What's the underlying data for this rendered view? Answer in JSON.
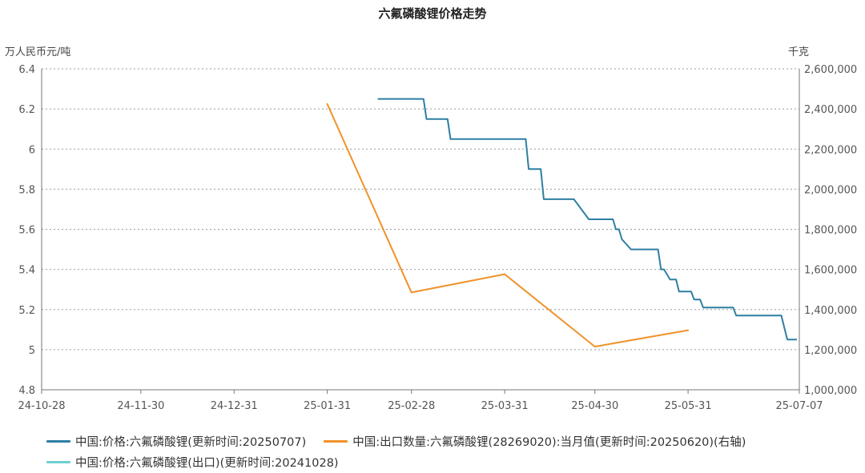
{
  "chart_data": {
    "type": "line",
    "title": "六氟磷酸锂价格走势",
    "ylabel_left": "万人民币元/吨",
    "ylabel_right": "千克",
    "x_ticks": [
      "24-10-28",
      "24-11-30",
      "24-12-31",
      "25-01-31",
      "25-02-28",
      "25-03-31",
      "25-04-30",
      "25-05-31",
      "25-07-07"
    ],
    "x_range": [
      "2024-10-28",
      "2025-07-07"
    ],
    "y_left": {
      "min": 4.8,
      "max": 6.4,
      "ticks": [
        "4.8",
        "5",
        "5.2",
        "5.4",
        "5.6",
        "5.8",
        "6",
        "6.2",
        "6.4"
      ]
    },
    "y_right": {
      "min": 1000000,
      "max": 2600000,
      "ticks": [
        "1,000,000",
        "1,200,000",
        "1,400,000",
        "1,600,000",
        "1,800,000",
        "2,000,000",
        "2,200,000",
        "2,400,000",
        "2,600,000"
      ]
    },
    "grid": "horizontal-dotted",
    "legend_position": "bottom",
    "series": [
      {
        "name": "中国:价格:六氟磷酸锂(更新时间:20250707)",
        "axis": "left",
        "color": "#2e7fa3",
        "step": true,
        "points": [
          [
            "2025-02-17",
            6.25
          ],
          [
            "2025-03-04",
            6.25
          ],
          [
            "2025-03-05",
            6.15
          ],
          [
            "2025-03-12",
            6.15
          ],
          [
            "2025-03-13",
            6.05
          ],
          [
            "2025-04-07",
            6.05
          ],
          [
            "2025-04-08",
            5.9
          ],
          [
            "2025-04-12",
            5.9
          ],
          [
            "2025-04-13",
            5.75
          ],
          [
            "2025-04-23",
            5.75
          ],
          [
            "2025-04-28",
            5.65
          ],
          [
            "2025-05-06",
            5.65
          ],
          [
            "2025-05-07",
            5.6
          ],
          [
            "2025-05-08",
            5.6
          ],
          [
            "2025-05-09",
            5.55
          ],
          [
            "2025-05-12",
            5.5
          ],
          [
            "2025-05-21",
            5.5
          ],
          [
            "2025-05-22",
            5.4
          ],
          [
            "2025-05-23",
            5.4
          ],
          [
            "2025-05-25",
            5.35
          ],
          [
            "2025-05-27",
            5.35
          ],
          [
            "2025-05-28",
            5.29
          ],
          [
            "2025-06-01",
            5.29
          ],
          [
            "2025-06-02",
            5.25
          ],
          [
            "2025-06-04",
            5.25
          ],
          [
            "2025-06-05",
            5.21
          ],
          [
            "2025-06-15",
            5.21
          ],
          [
            "2025-06-16",
            5.17
          ],
          [
            "2025-07-01",
            5.17
          ],
          [
            "2025-07-03",
            5.05
          ],
          [
            "2025-07-06",
            5.05
          ]
        ]
      },
      {
        "name": "中国:出口数量:六氟磷酸锂(28269020):当月值(更新时间:20250620)(右轴)",
        "axis": "right",
        "color": "#f0922b",
        "step": false,
        "points": [
          [
            "2025-01-31",
            2425000
          ],
          [
            "2025-02-28",
            1485000
          ],
          [
            "2025-03-31",
            1576000
          ],
          [
            "2025-04-30",
            1215000
          ],
          [
            "2025-05-31",
            1297000
          ]
        ]
      },
      {
        "name": "中国:价格:六氟磷酸锂(出口)(更新时间:20241028)",
        "axis": "left",
        "color": "#6fcfcf",
        "step": false,
        "points": []
      }
    ]
  }
}
